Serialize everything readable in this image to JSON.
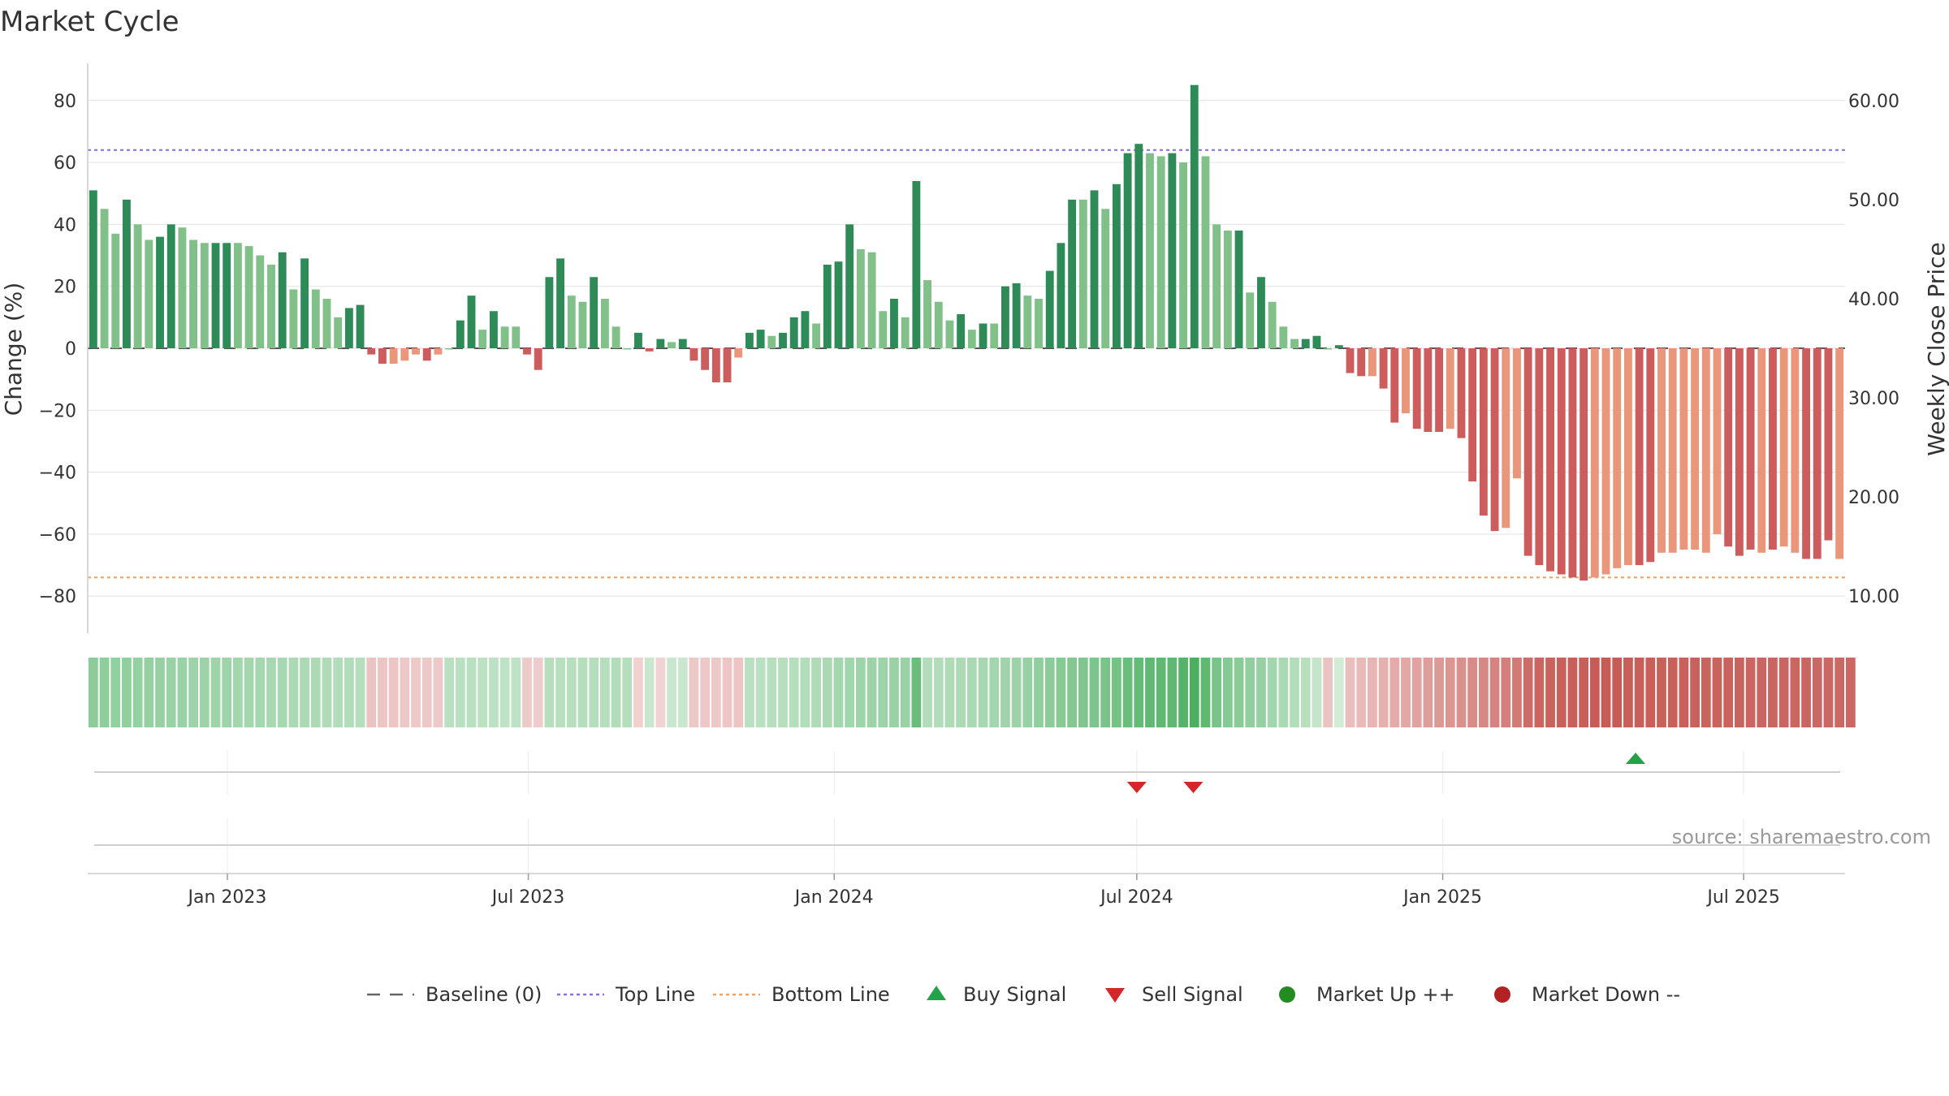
{
  "title": "Market Cycle",
  "source": "source: sharemaestro.com",
  "colors": {
    "up_strong": "#2e8b57",
    "up_light": "#82c08a",
    "down_strong": "#cd5c5c",
    "down_light": "#e9967a",
    "top_line": "#9370db",
    "bottom_line": "#f4a460",
    "baseline": "#555555",
    "buy": "#22a34a",
    "sell": "#d62728",
    "market_up": "#228b22",
    "market_down": "#b22222",
    "grid": "#e6e6e6"
  },
  "legend": [
    {
      "label": "Baseline (0)",
      "symbol": "dash",
      "color": "#666666"
    },
    {
      "label": "Top Line",
      "symbol": "dot-line",
      "color": "#9370db"
    },
    {
      "label": "Bottom Line",
      "symbol": "dot-line",
      "color": "#f4a460"
    },
    {
      "label": "Buy Signal",
      "symbol": "triangle-up",
      "color": "#22a34a"
    },
    {
      "label": "Sell Signal",
      "symbol": "triangle-down",
      "color": "#d62728"
    },
    {
      "label": "Market Up ++",
      "symbol": "circle",
      "color": "#228b22"
    },
    {
      "label": "Market Down --",
      "symbol": "circle",
      "color": "#b22222"
    }
  ],
  "chart_data": {
    "type": "bar",
    "title": "Market Cycle",
    "ylabel": "Change (%)",
    "y2label": "Weekly Close Price",
    "ylim": [
      -92,
      92
    ],
    "yticks": [
      80,
      60,
      40,
      20,
      0,
      -20,
      -40,
      -60,
      -80
    ],
    "yticks_labels": [
      "80",
      "60",
      "40",
      "20",
      "0",
      "−20",
      "−40",
      "−60",
      "−80"
    ],
    "y2lim": [
      6.25,
      63.75
    ],
    "y2ticks": [
      60,
      50,
      40,
      30,
      20,
      10
    ],
    "y2ticks_labels": [
      "60.00",
      "50.00",
      "40.00",
      "30.00",
      "20.00",
      "10.00"
    ],
    "top_line": 64,
    "bottom_line": -74,
    "grid": true,
    "legend_position": "bottom",
    "x_start": "2022-10-09",
    "x_end": "2025-08-31",
    "xticks": [
      {
        "date": "2023-01-01",
        "label": "Jan 2023"
      },
      {
        "date": "2023-07-01",
        "label": "Jul 2023"
      },
      {
        "date": "2024-01-01",
        "label": "Jan 2024"
      },
      {
        "date": "2024-07-01",
        "label": "Jul 2024"
      },
      {
        "date": "2025-01-01",
        "label": "Jan 2025"
      },
      {
        "date": "2025-07-01",
        "label": "Jul 2025"
      }
    ],
    "values": [
      51,
      45,
      37,
      48,
      40,
      35,
      36,
      40,
      39,
      35,
      34,
      34,
      34,
      34,
      33,
      30,
      27,
      31,
      19,
      29,
      19,
      16,
      10,
      13,
      14,
      -2,
      -5,
      -5,
      -4,
      -2,
      -4,
      -2,
      0,
      9,
      17,
      6,
      12,
      7,
      7,
      -2,
      -7,
      23,
      29,
      17,
      15,
      23,
      16,
      7,
      0,
      5,
      -1,
      3,
      2,
      3,
      -4,
      -7,
      -11,
      -11,
      -3,
      5,
      6,
      4,
      5,
      10,
      12,
      8,
      27,
      28,
      40,
      32,
      31,
      12,
      16,
      10,
      54,
      22,
      15,
      9,
      11,
      6,
      8,
      8,
      20,
      21,
      17,
      16,
      25,
      34,
      48,
      48,
      51,
      45,
      53,
      63,
      66,
      63,
      62,
      63,
      60,
      85,
      62,
      40,
      38,
      38,
      18,
      23,
      15,
      7,
      3,
      3,
      4,
      0,
      1,
      -8,
      -9,
      -9,
      -13,
      -24,
      -21,
      -26,
      -27,
      -27,
      -26,
      -29,
      -43,
      -54,
      -59,
      -58,
      -42,
      -67,
      -70,
      -72,
      -73,
      -74,
      -75,
      -74,
      -73,
      -71,
      -70,
      -70,
      -69,
      -66,
      -66,
      -65,
      -65,
      -66,
      -60,
      -64,
      -67,
      -65,
      -66,
      -65,
      -64,
      -66,
      -68,
      -68,
      -62,
      -68
    ],
    "shades": [
      1,
      0,
      0,
      1,
      0,
      0,
      1,
      1,
      0,
      0,
      0,
      1,
      1,
      0,
      0,
      0,
      0,
      1,
      0,
      1,
      0,
      0,
      0,
      1,
      1,
      1,
      1,
      0,
      0,
      0,
      1,
      0,
      0,
      1,
      1,
      0,
      1,
      0,
      0,
      1,
      1,
      1,
      1,
      0,
      0,
      1,
      0,
      0,
      0,
      1,
      1,
      1,
      0,
      1,
      1,
      1,
      1,
      1,
      0,
      1,
      1,
      0,
      1,
      1,
      1,
      0,
      1,
      1,
      1,
      0,
      0,
      0,
      1,
      0,
      1,
      0,
      0,
      0,
      1,
      0,
      1,
      0,
      1,
      1,
      0,
      0,
      1,
      1,
      1,
      0,
      1,
      0,
      1,
      1,
      1,
      0,
      0,
      1,
      0,
      1,
      0,
      0,
      0,
      1,
      0,
      1,
      0,
      0,
      0,
      1,
      1,
      0,
      1,
      1,
      1,
      0,
      1,
      1,
      0,
      1,
      1,
      1,
      0,
      1,
      1,
      1,
      1,
      0,
      0,
      1,
      1,
      1,
      1,
      1,
      1,
      0,
      0,
      0,
      0,
      1,
      1,
      0,
      0,
      0,
      0,
      0,
      0,
      1,
      1,
      1,
      0,
      1,
      0,
      0,
      1,
      1,
      1,
      0,
      1
    ],
    "regime_values": [
      35,
      34,
      33,
      33,
      32,
      32,
      31,
      30,
      30,
      29,
      29,
      28,
      28,
      27,
      26,
      26,
      25,
      25,
      24,
      24,
      23,
      22,
      21,
      21,
      20,
      -14,
      -13,
      -13,
      -12,
      -12,
      -12,
      -11,
      18,
      18,
      18,
      17,
      17,
      16,
      16,
      -11,
      -10,
      19,
      19,
      19,
      20,
      20,
      20,
      21,
      20,
      -8,
      12,
      -7,
      12,
      12,
      -12,
      -12,
      -12,
      -13,
      -13,
      18,
      18,
      19,
      19,
      20,
      21,
      22,
      24,
      26,
      27,
      28,
      29,
      29,
      30,
      30,
      48,
      21,
      21,
      22,
      23,
      24,
      25,
      27,
      28,
      29,
      31,
      33,
      35,
      37,
      39,
      40,
      41,
      42,
      44,
      48,
      50,
      52,
      52,
      52,
      56,
      60,
      52,
      42,
      38,
      36,
      33,
      31,
      27,
      24,
      21,
      19,
      14,
      -14,
      9,
      -16,
      -18,
      -20,
      -22,
      -24,
      -26,
      -28,
      -30,
      -32,
      -34,
      -36,
      -38,
      -40,
      -42,
      -44,
      -46,
      -52,
      -55,
      -56,
      -57,
      -58,
      -58,
      -59,
      -59,
      -59,
      -58,
      -58,
      -58,
      -57,
      -57,
      -57,
      -57,
      -56,
      -56,
      -56,
      -56,
      -55,
      -55,
      -55,
      -55,
      -55,
      -55,
      -54,
      -54,
      -54,
      -54
    ],
    "sell_signals": [
      "2024-07-01",
      "2024-08-04"
    ],
    "buy_signals": [
      "2025-04-27"
    ]
  }
}
